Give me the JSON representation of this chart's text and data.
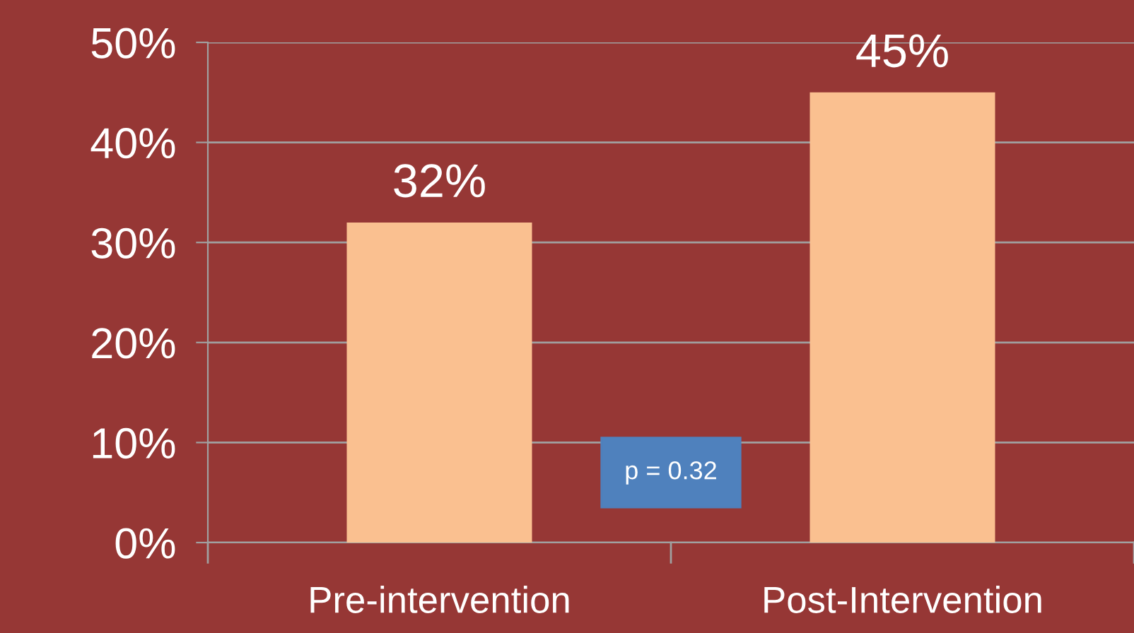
{
  "chart_data": {
    "type": "bar",
    "categories": [
      "Pre-intervention",
      "Post-Intervention"
    ],
    "values": [
      32,
      45
    ],
    "color": "#fac090",
    "value_labels": [
      "32%",
      "45%"
    ],
    "ylim": [
      0,
      50
    ],
    "yticks": [
      {
        "value": 0,
        "label": "0%"
      },
      {
        "value": 10,
        "label": "10%"
      },
      {
        "value": 20,
        "label": "20%"
      },
      {
        "value": 30,
        "label": "30%"
      },
      {
        "value": 40,
        "label": "40%"
      },
      {
        "value": 50,
        "label": "50%"
      }
    ],
    "grid": "y",
    "annotations": [
      "p = 0.32"
    ]
  }
}
